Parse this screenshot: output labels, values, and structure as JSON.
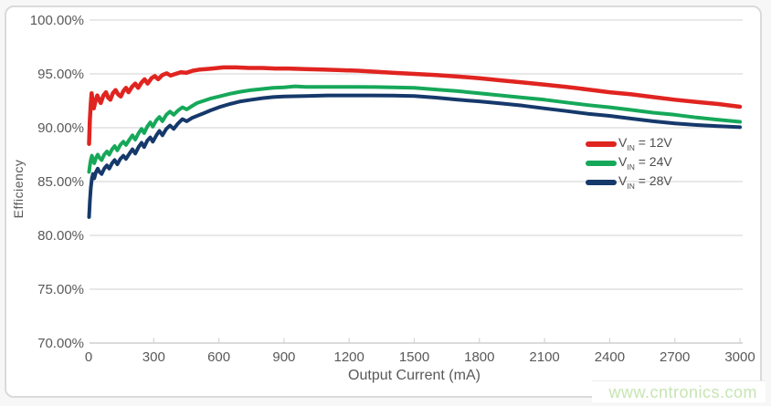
{
  "page": {
    "watermark": "www.cntronics.com"
  },
  "colors": {
    "grid": "#d9d9d9",
    "axis_line": "#cfcfcf",
    "tick": "#d4d4d4",
    "axis_text": "#595959",
    "legend_text": "#4d4d4d",
    "card_border": "#dadada",
    "watermark": "#c7e5b3",
    "series_red": "#e02420",
    "series_green": "#16a85a",
    "series_navy": "#16396b"
  },
  "chart_data": {
    "type": "line",
    "title": "",
    "xlabel": "Output Current (mA)",
    "ylabel": "Efficiency",
    "xlim": [
      0,
      3000
    ],
    "ylim": [
      70,
      100
    ],
    "grid": "horizontal-only",
    "legend_position": "middle-right",
    "xticks": [
      "0",
      "300",
      "600",
      "900",
      "1200",
      "1500",
      "1800",
      "2100",
      "2400",
      "2700",
      "3000"
    ],
    "yticks": [
      "100.00%",
      "95.00%",
      "90.00%",
      "85.00%",
      "80.00%",
      "75.00%",
      "70.00%"
    ],
    "series": [
      {
        "name": "VIN = 12V",
        "label_prefix": "V",
        "label_sub": "IN",
        "label_suffix": " = 12V",
        "color": "#e02420",
        "stroke_width": 4.5,
        "points": [
          [
            2,
            88.5
          ],
          [
            6,
            90.8
          ],
          [
            10,
            92.2
          ],
          [
            14,
            93.2
          ],
          [
            18,
            92.5
          ],
          [
            24,
            91.8
          ],
          [
            32,
            92.5
          ],
          [
            40,
            93.0
          ],
          [
            48,
            92.6
          ],
          [
            56,
            92.3
          ],
          [
            68,
            93.0
          ],
          [
            80,
            93.3
          ],
          [
            90,
            92.8
          ],
          [
            100,
            92.6
          ],
          [
            112,
            93.2
          ],
          [
            124,
            93.5
          ],
          [
            136,
            93.1
          ],
          [
            148,
            92.9
          ],
          [
            160,
            93.4
          ],
          [
            172,
            93.7
          ],
          [
            184,
            93.3
          ],
          [
            200,
            93.8
          ],
          [
            215,
            94.1
          ],
          [
            228,
            93.7
          ],
          [
            244,
            94.2
          ],
          [
            258,
            94.5
          ],
          [
            272,
            94.1
          ],
          [
            290,
            94.6
          ],
          [
            305,
            94.8
          ],
          [
            320,
            94.5
          ],
          [
            340,
            94.9
          ],
          [
            360,
            95.05
          ],
          [
            378,
            94.85
          ],
          [
            400,
            95.0
          ],
          [
            425,
            95.15
          ],
          [
            450,
            95.1
          ],
          [
            480,
            95.3
          ],
          [
            510,
            95.4
          ],
          [
            540,
            95.45
          ],
          [
            570,
            95.5
          ],
          [
            620,
            95.6
          ],
          [
            680,
            95.6
          ],
          [
            740,
            95.55
          ],
          [
            800,
            95.55
          ],
          [
            860,
            95.5
          ],
          [
            920,
            95.5
          ],
          [
            1000,
            95.45
          ],
          [
            1080,
            95.4
          ],
          [
            1160,
            95.35
          ],
          [
            1240,
            95.3
          ],
          [
            1320,
            95.2
          ],
          [
            1400,
            95.1
          ],
          [
            1500,
            95.0
          ],
          [
            1600,
            94.9
          ],
          [
            1700,
            94.75
          ],
          [
            1800,
            94.6
          ],
          [
            1900,
            94.4
          ],
          [
            2000,
            94.2
          ],
          [
            2100,
            94.0
          ],
          [
            2200,
            93.8
          ],
          [
            2300,
            93.55
          ],
          [
            2400,
            93.3
          ],
          [
            2500,
            93.1
          ],
          [
            2600,
            92.85
          ],
          [
            2700,
            92.6
          ],
          [
            2800,
            92.4
          ],
          [
            2900,
            92.2
          ],
          [
            3000,
            91.95
          ]
        ]
      },
      {
        "name": "VIN = 24V",
        "label_prefix": "V",
        "label_sub": "IN",
        "label_suffix": " = 24V",
        "color": "#16a85a",
        "stroke_width": 4,
        "points": [
          [
            2,
            85.9
          ],
          [
            6,
            86.5
          ],
          [
            10,
            87.0
          ],
          [
            15,
            87.4
          ],
          [
            20,
            87.0
          ],
          [
            26,
            86.7
          ],
          [
            34,
            87.2
          ],
          [
            42,
            87.5
          ],
          [
            50,
            87.2
          ],
          [
            60,
            87.0
          ],
          [
            72,
            87.5
          ],
          [
            84,
            87.8
          ],
          [
            95,
            87.5
          ],
          [
            108,
            88.0
          ],
          [
            120,
            88.3
          ],
          [
            132,
            87.9
          ],
          [
            146,
            88.4
          ],
          [
            160,
            88.7
          ],
          [
            172,
            88.4
          ],
          [
            188,
            88.9
          ],
          [
            202,
            89.3
          ],
          [
            215,
            88.9
          ],
          [
            230,
            89.5
          ],
          [
            244,
            89.9
          ],
          [
            256,
            89.5
          ],
          [
            270,
            90.1
          ],
          [
            284,
            90.5
          ],
          [
            296,
            90.1
          ],
          [
            312,
            90.7
          ],
          [
            326,
            91.0
          ],
          [
            340,
            90.6
          ],
          [
            358,
            91.2
          ],
          [
            375,
            91.5
          ],
          [
            392,
            91.2
          ],
          [
            412,
            91.6
          ],
          [
            432,
            91.9
          ],
          [
            452,
            91.7
          ],
          [
            475,
            92.0
          ],
          [
            500,
            92.3
          ],
          [
            530,
            92.5
          ],
          [
            560,
            92.7
          ],
          [
            600,
            92.9
          ],
          [
            650,
            93.15
          ],
          [
            700,
            93.35
          ],
          [
            750,
            93.5
          ],
          [
            800,
            93.6
          ],
          [
            850,
            93.7
          ],
          [
            900,
            93.75
          ],
          [
            950,
            93.85
          ],
          [
            1000,
            93.8
          ],
          [
            1080,
            93.8
          ],
          [
            1160,
            93.8
          ],
          [
            1240,
            93.8
          ],
          [
            1320,
            93.78
          ],
          [
            1400,
            93.75
          ],
          [
            1500,
            93.7
          ],
          [
            1600,
            93.55
          ],
          [
            1700,
            93.4
          ],
          [
            1800,
            93.2
          ],
          [
            1900,
            93.0
          ],
          [
            2000,
            92.8
          ],
          [
            2100,
            92.6
          ],
          [
            2200,
            92.35
          ],
          [
            2300,
            92.1
          ],
          [
            2400,
            91.9
          ],
          [
            2500,
            91.65
          ],
          [
            2600,
            91.4
          ],
          [
            2700,
            91.2
          ],
          [
            2800,
            90.95
          ],
          [
            2900,
            90.75
          ],
          [
            3000,
            90.55
          ]
        ]
      },
      {
        "name": "VIN = 28V",
        "label_prefix": "V",
        "label_sub": "IN",
        "label_suffix": " = 28V",
        "color": "#16396b",
        "stroke_width": 4,
        "points": [
          [
            2,
            81.7
          ],
          [
            6,
            83.2
          ],
          [
            10,
            84.4
          ],
          [
            15,
            85.3
          ],
          [
            20,
            85.7
          ],
          [
            26,
            85.3
          ],
          [
            34,
            85.9
          ],
          [
            42,
            86.2
          ],
          [
            50,
            85.9
          ],
          [
            60,
            85.7
          ],
          [
            72,
            86.2
          ],
          [
            84,
            86.5
          ],
          [
            95,
            86.2
          ],
          [
            108,
            86.7
          ],
          [
            120,
            87.0
          ],
          [
            132,
            86.6
          ],
          [
            146,
            87.1
          ],
          [
            160,
            87.4
          ],
          [
            172,
            87.1
          ],
          [
            188,
            87.6
          ],
          [
            202,
            88.0
          ],
          [
            215,
            87.6
          ],
          [
            230,
            88.2
          ],
          [
            244,
            88.6
          ],
          [
            256,
            88.2
          ],
          [
            270,
            88.8
          ],
          [
            284,
            89.1
          ],
          [
            296,
            88.7
          ],
          [
            312,
            89.3
          ],
          [
            326,
            89.7
          ],
          [
            340,
            89.3
          ],
          [
            358,
            89.9
          ],
          [
            375,
            90.2
          ],
          [
            392,
            89.9
          ],
          [
            412,
            90.4
          ],
          [
            432,
            90.8
          ],
          [
            452,
            90.6
          ],
          [
            475,
            90.9
          ],
          [
            500,
            91.1
          ],
          [
            530,
            91.35
          ],
          [
            560,
            91.6
          ],
          [
            600,
            91.9
          ],
          [
            650,
            92.2
          ],
          [
            700,
            92.45
          ],
          [
            750,
            92.6
          ],
          [
            800,
            92.75
          ],
          [
            850,
            92.85
          ],
          [
            900,
            92.9
          ],
          [
            1000,
            92.95
          ],
          [
            1100,
            93.0
          ],
          [
            1200,
            93.0
          ],
          [
            1300,
            93.0
          ],
          [
            1400,
            92.98
          ],
          [
            1500,
            92.95
          ],
          [
            1600,
            92.8
          ],
          [
            1700,
            92.6
          ],
          [
            1800,
            92.45
          ],
          [
            1900,
            92.25
          ],
          [
            2000,
            92.05
          ],
          [
            2100,
            91.8
          ],
          [
            2200,
            91.55
          ],
          [
            2300,
            91.3
          ],
          [
            2400,
            91.1
          ],
          [
            2500,
            90.85
          ],
          [
            2600,
            90.6
          ],
          [
            2700,
            90.4
          ],
          [
            2800,
            90.25
          ],
          [
            2900,
            90.15
          ],
          [
            3000,
            90.05
          ]
        ]
      }
    ]
  }
}
